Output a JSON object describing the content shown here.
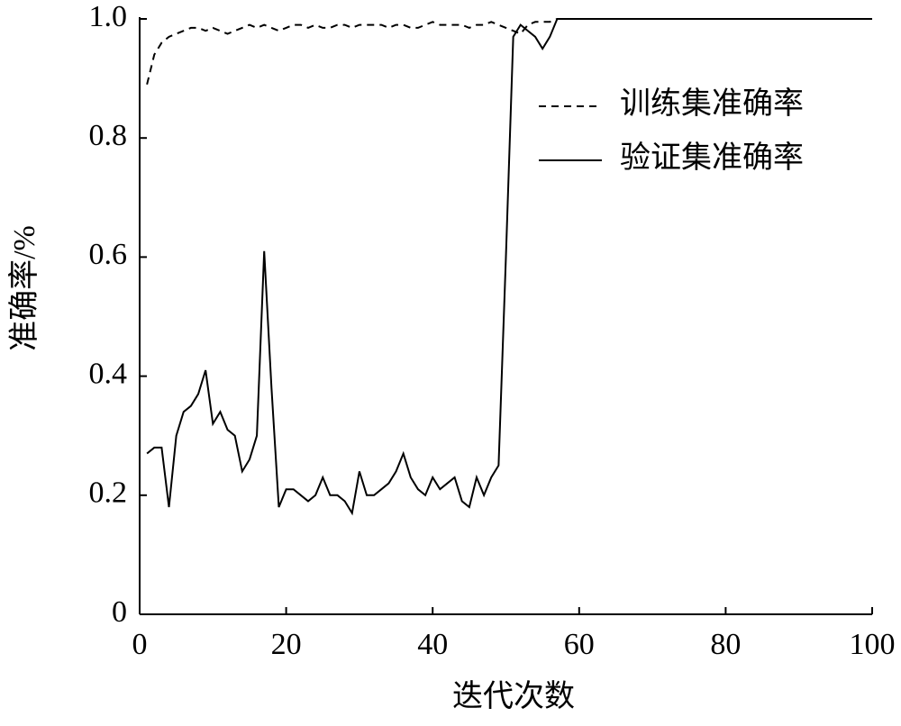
{
  "chart_data": {
    "type": "line",
    "x_label": "迭代次数",
    "y_label": "准确率/%",
    "x": [
      1,
      2,
      3,
      4,
      5,
      6,
      7,
      8,
      9,
      10,
      11,
      12,
      13,
      14,
      15,
      16,
      17,
      18,
      19,
      20,
      21,
      22,
      23,
      24,
      25,
      26,
      27,
      28,
      29,
      30,
      31,
      32,
      33,
      34,
      35,
      36,
      37,
      38,
      39,
      40,
      41,
      42,
      43,
      44,
      45,
      46,
      47,
      48,
      49,
      50,
      51,
      52,
      53,
      54,
      55,
      56,
      57,
      58,
      59,
      60,
      61,
      62,
      63,
      64,
      65,
      66,
      67,
      68,
      69,
      70,
      71,
      72,
      73,
      74,
      75,
      76,
      77,
      78,
      79,
      80,
      81,
      82,
      83,
      84,
      85,
      86,
      87,
      88,
      89,
      90,
      91,
      92,
      93,
      94,
      95,
      96,
      97,
      98,
      99,
      100
    ],
    "series": [
      {
        "name": "训练集准确率",
        "color": "#000000",
        "dash": true,
        "values": [
          0.89,
          0.94,
          0.96,
          0.97,
          0.975,
          0.98,
          0.985,
          0.985,
          0.98,
          0.985,
          0.98,
          0.975,
          0.98,
          0.985,
          0.99,
          0.985,
          0.99,
          0.985,
          0.98,
          0.985,
          0.99,
          0.99,
          0.985,
          0.99,
          0.985,
          0.985,
          0.99,
          0.99,
          0.985,
          0.99,
          0.99,
          0.99,
          0.99,
          0.985,
          0.99,
          0.99,
          0.985,
          0.985,
          0.99,
          0.995,
          0.99,
          0.99,
          0.99,
          0.99,
          0.985,
          0.99,
          0.99,
          0.995,
          0.99,
          0.985,
          0.98,
          0.975,
          0.99,
          0.995,
          0.995,
          0.995,
          1.0,
          1.0,
          1.0,
          1.0,
          1.0,
          1.0,
          1.0,
          1.0,
          1.0,
          1.0,
          1.0,
          1.0,
          1.0,
          1.0,
          1.0,
          1.0,
          1.0,
          1.0,
          1.0,
          1.0,
          1.0,
          1.0,
          1.0,
          1.0,
          1.0,
          1.0,
          1.0,
          1.0,
          1.0,
          1.0,
          1.0,
          1.0,
          1.0,
          1.0,
          1.0,
          1.0,
          1.0,
          1.0,
          1.0,
          1.0,
          1.0,
          1.0,
          1.0,
          1.0
        ]
      },
      {
        "name": "验证集准确率",
        "color": "#000000",
        "dash": false,
        "values": [
          0.27,
          0.28,
          0.28,
          0.18,
          0.3,
          0.34,
          0.35,
          0.37,
          0.41,
          0.32,
          0.34,
          0.31,
          0.3,
          0.24,
          0.26,
          0.3,
          0.61,
          0.38,
          0.18,
          0.21,
          0.21,
          0.2,
          0.19,
          0.2,
          0.23,
          0.2,
          0.2,
          0.19,
          0.17,
          0.24,
          0.2,
          0.2,
          0.21,
          0.22,
          0.24,
          0.27,
          0.23,
          0.21,
          0.2,
          0.23,
          0.21,
          0.22,
          0.23,
          0.19,
          0.18,
          0.23,
          0.2,
          0.23,
          0.25,
          0.6,
          0.97,
          0.99,
          0.98,
          0.97,
          0.95,
          0.97,
          1.0,
          1.0,
          1.0,
          1.0,
          1.0,
          1.0,
          1.0,
          1.0,
          1.0,
          1.0,
          1.0,
          1.0,
          1.0,
          1.0,
          1.0,
          1.0,
          1.0,
          1.0,
          1.0,
          1.0,
          1.0,
          1.0,
          1.0,
          1.0,
          1.0,
          1.0,
          1.0,
          1.0,
          1.0,
          1.0,
          1.0,
          1.0,
          1.0,
          1.0,
          1.0,
          1.0,
          1.0,
          1.0,
          1.0,
          1.0,
          1.0,
          1.0,
          1.0,
          1.0
        ]
      }
    ],
    "xlim": [
      0,
      100
    ],
    "xticks": [
      0,
      20,
      40,
      60,
      80,
      100
    ],
    "ylim": [
      0,
      1
    ],
    "yticks": [
      0,
      0.2,
      0.4,
      0.6,
      0.8,
      {
        "value": 1,
        "label": "1.0"
      }
    ],
    "grid": false,
    "legend": "upper right"
  }
}
